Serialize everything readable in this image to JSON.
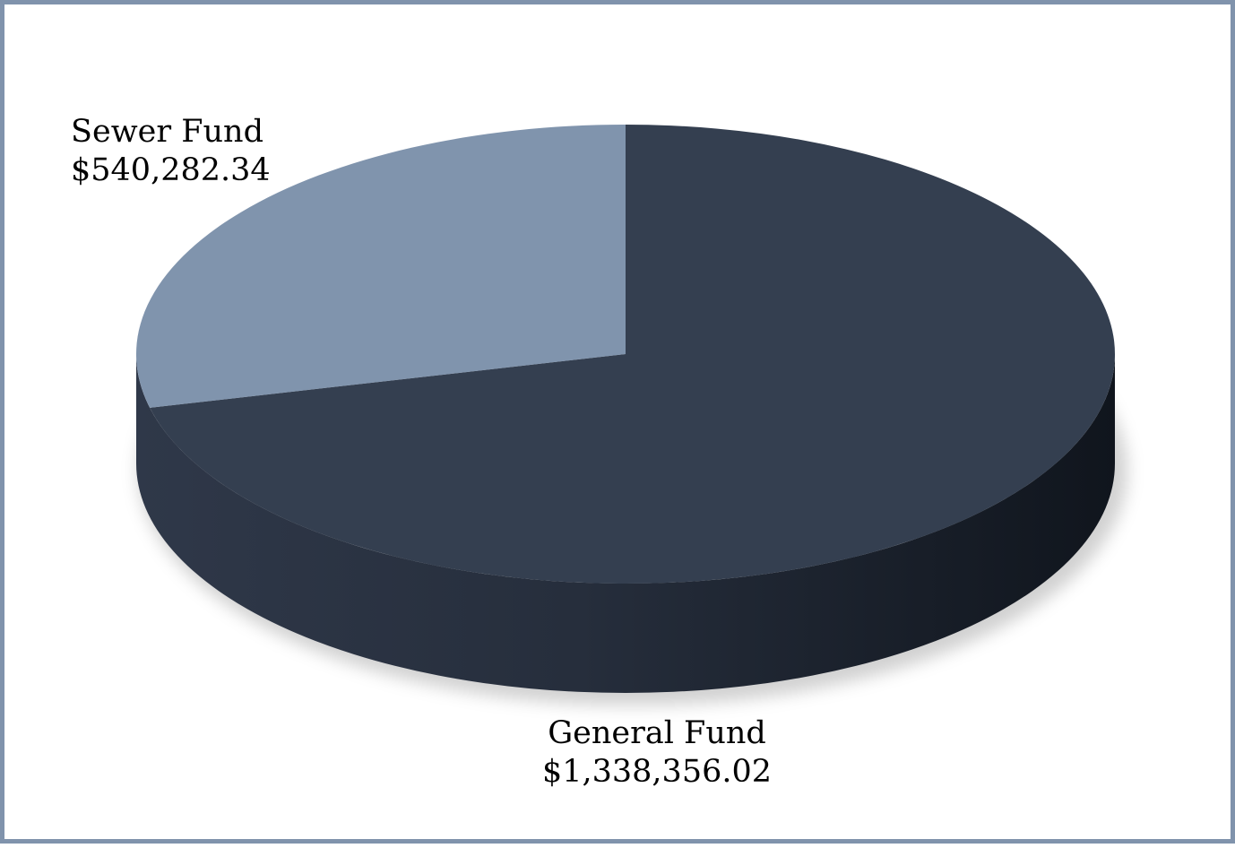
{
  "chart_data": {
    "type": "pie",
    "style": "3d",
    "categories": [
      "General Fund",
      "Sewer Fund"
    ],
    "values": [
      1338356.02,
      540282.34
    ],
    "value_labels": [
      "$1,338,356.02",
      "$540,282.34"
    ],
    "colors": {
      "General Fund": {
        "top": "#343f50",
        "side_light": "#2c3544",
        "side_dark": "#141a24"
      },
      "Sewer Fund": {
        "top": "#8094ad"
      }
    },
    "frame_color": "#8093ac",
    "legend": "none"
  }
}
